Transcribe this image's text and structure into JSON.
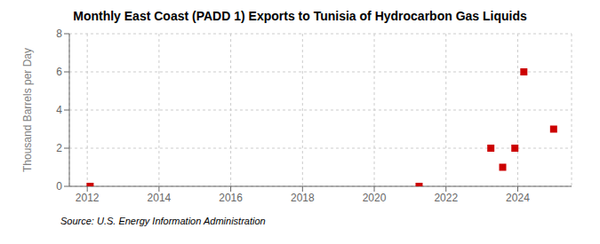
{
  "chart_data": {
    "type": "scatter",
    "title": "Monthly East Coast (PADD 1) Exports to Tunisia of Hydrocarbon Gas Liquids",
    "y_label": "Thousand Barrels per Day",
    "annotations": [
      "Source: U.S. Energy Information Administration"
    ],
    "x": [
      2012.08,
      2021.25,
      2023.25,
      2023.58,
      2023.92,
      2024.17,
      2025.0
    ],
    "values": [
      0.0,
      0.0,
      2.0,
      1.0,
      2.0,
      6.0,
      3.0
    ],
    "color": "#cc0000",
    "marker": "square",
    "xlim": [
      2011.5,
      2025.5
    ],
    "ylim": [
      0,
      8
    ],
    "xticks": [
      2012,
      2014,
      2016,
      2018,
      2020,
      2022,
      2024
    ],
    "yticks": [
      0,
      2,
      4,
      6,
      8
    ],
    "grid": true
  }
}
